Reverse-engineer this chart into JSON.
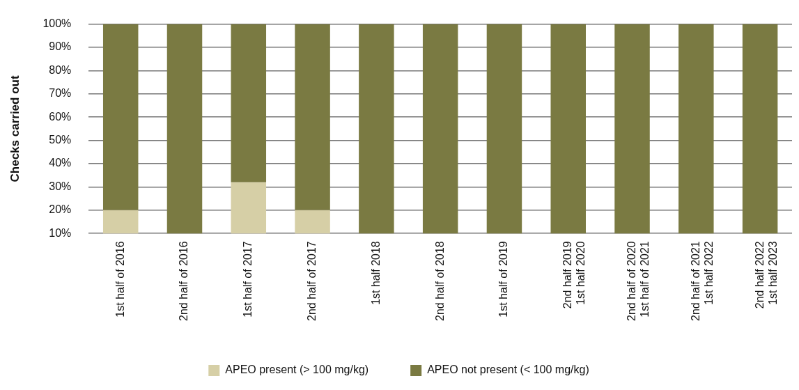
{
  "chart_data": {
    "type": "bar",
    "stacked": true,
    "ylabel": "Checks carried out",
    "categories": [
      "1st half of 2016",
      "2nd half of 2016",
      "1st half of 2017",
      "2nd half of 2017",
      "1st half 2018",
      "2nd half of 2018",
      "1st half of 2019",
      "2nd half 2019\n1st half 2020",
      "2nd half of 2020\n1st half of 2021",
      "2nd half of 2021\n1st half 2022",
      "2nd half 2022\n1st half 2023"
    ],
    "series": [
      {
        "name": "APEO present (> 100 mg/kg)",
        "color": "#d6cfa6",
        "values": [
          20,
          null,
          32,
          20,
          null,
          null,
          null,
          null,
          null,
          null,
          null
        ]
      },
      {
        "name": "APEO not present (< 100 mg/kg)",
        "color": "#7a7a42",
        "values": [
          80,
          100,
          68,
          80,
          100,
          100,
          100,
          100,
          100,
          100,
          100
        ]
      }
    ],
    "ylim": [
      10,
      100
    ],
    "yticks": [
      {
        "value": 10,
        "label": "10%"
      },
      {
        "value": 20,
        "label": "20%"
      },
      {
        "value": 30,
        "label": "30%"
      },
      {
        "value": 40,
        "label": "40%"
      },
      {
        "value": 50,
        "label": "50%"
      },
      {
        "value": 60,
        "label": "60%"
      },
      {
        "value": 70,
        "label": "70%"
      },
      {
        "value": 80,
        "label": "80%"
      },
      {
        "value": 90,
        "label": "90%"
      },
      {
        "value": 100,
        "label": "100%"
      }
    ],
    "grid": "y",
    "legend": "bottom"
  }
}
